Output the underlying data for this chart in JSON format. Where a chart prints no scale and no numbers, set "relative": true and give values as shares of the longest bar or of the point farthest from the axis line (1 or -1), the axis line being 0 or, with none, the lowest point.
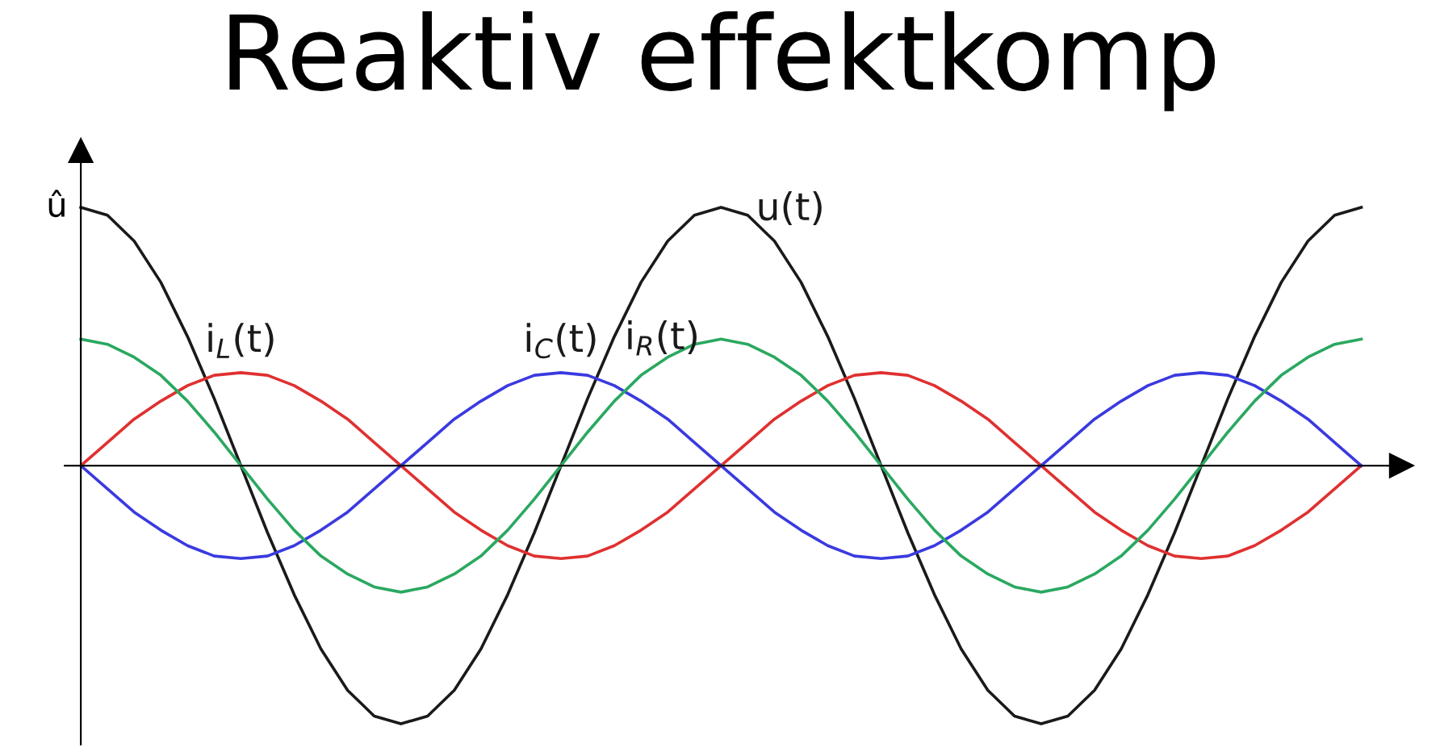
{
  "chart_data": {
    "type": "line",
    "title": "Reaktiv effektkomp",
    "ylabel": "û",
    "relative": true,
    "legend": false,
    "marker": "none",
    "line_style": "solid",
    "categories": [
      null,
      null,
      null,
      null,
      null,
      null,
      null,
      null,
      null,
      null,
      null,
      null,
      null,
      null,
      null,
      null,
      null,
      null,
      null,
      null,
      null,
      null,
      null,
      null,
      null,
      null,
      null,
      null,
      null,
      null,
      null,
      null,
      null,
      null,
      null,
      null,
      null,
      null,
      null,
      null,
      null,
      null,
      null,
      null,
      null,
      null,
      null,
      null,
      null
    ],
    "series": [
      {
        "name": "u(t)",
        "color": "#1a1a1a",
        "values": [
          1,
          0.97,
          0.87,
          0.71,
          0.5,
          0.26,
          0,
          -0.26,
          -0.5,
          -0.71,
          -0.87,
          -0.97,
          -1,
          -0.97,
          -0.87,
          -0.71,
          -0.5,
          -0.26,
          0,
          0.26,
          0.5,
          0.71,
          0.87,
          0.97,
          1,
          0.97,
          0.87,
          0.71,
          0.5,
          0.26,
          0,
          -0.26,
          -0.5,
          -0.71,
          -0.87,
          -0.97,
          -1,
          -0.97,
          -0.87,
          -0.71,
          -0.5,
          -0.26,
          0,
          0.26,
          0.5,
          0.71,
          0.87,
          0.97,
          1
        ]
      },
      {
        "name": "i$_{L}$(t)",
        "color": "#e03030",
        "values": [
          0,
          0.09,
          0.18,
          0.25,
          0.31,
          0.35,
          0.36,
          0.35,
          0.31,
          0.25,
          0.18,
          0.09,
          0,
          -0.09,
          -0.18,
          -0.25,
          -0.31,
          -0.35,
          -0.36,
          -0.35,
          -0.31,
          -0.25,
          -0.18,
          -0.09,
          0,
          0.09,
          0.18,
          0.25,
          0.31,
          0.35,
          0.36,
          0.35,
          0.31,
          0.25,
          0.18,
          0.09,
          0,
          -0.09,
          -0.18,
          -0.25,
          -0.31,
          -0.35,
          -0.36,
          -0.35,
          -0.31,
          -0.25,
          -0.18,
          -0.09,
          0
        ]
      },
      {
        "name": "i$_{C}$(t)",
        "color": "#3a3ae0",
        "values": [
          0,
          -0.09,
          -0.18,
          -0.25,
          -0.31,
          -0.35,
          -0.36,
          -0.35,
          -0.31,
          -0.25,
          -0.18,
          -0.09,
          0,
          0.09,
          0.18,
          0.25,
          0.31,
          0.35,
          0.36,
          0.35,
          0.31,
          0.25,
          0.18,
          0.09,
          0,
          -0.09,
          -0.18,
          -0.25,
          -0.31,
          -0.35,
          -0.36,
          -0.35,
          -0.31,
          -0.25,
          -0.18,
          -0.09,
          0,
          0.09,
          0.18,
          0.25,
          0.31,
          0.35,
          0.36,
          0.35,
          0.31,
          0.25,
          0.18,
          0.09,
          0
        ]
      },
      {
        "name": "i$_{R}$(t)",
        "color": "#2aa860",
        "values": [
          0.49,
          0.47,
          0.42,
          0.35,
          0.25,
          0.13,
          0,
          -0.13,
          -0.25,
          -0.35,
          -0.42,
          -0.47,
          -0.49,
          -0.47,
          -0.42,
          -0.35,
          -0.25,
          -0.13,
          0,
          0.13,
          0.25,
          0.35,
          0.42,
          0.47,
          0.49,
          0.47,
          0.42,
          0.35,
          0.25,
          0.13,
          0,
          -0.13,
          -0.25,
          -0.35,
          -0.42,
          -0.47,
          -0.49,
          -0.47,
          -0.42,
          -0.35,
          -0.25,
          -0.13,
          0,
          0.13,
          0.25,
          0.35,
          0.42,
          0.47,
          0.49
        ]
      }
    ]
  }
}
